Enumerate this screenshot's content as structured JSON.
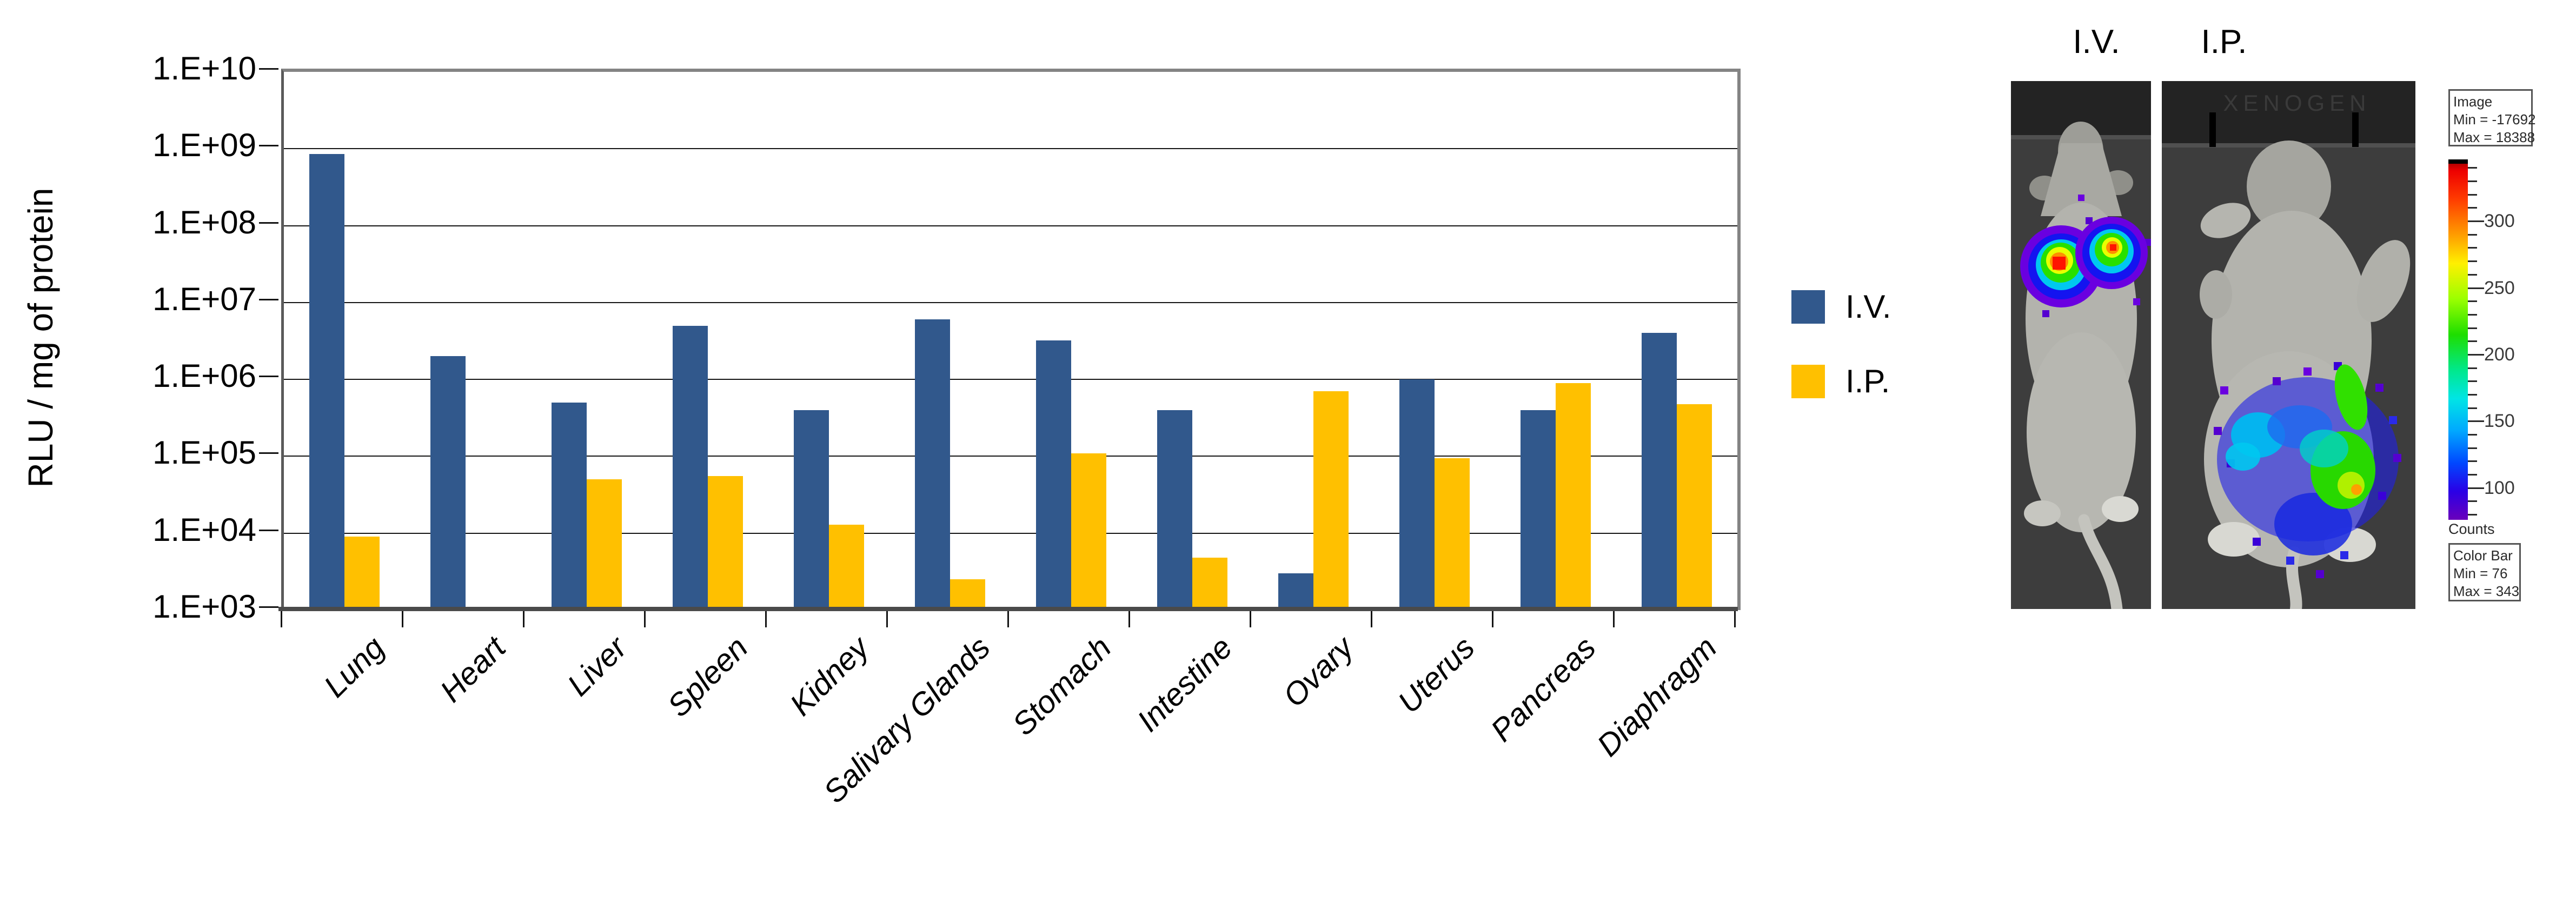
{
  "chart_data": {
    "type": "bar",
    "title": "",
    "xlabel": "",
    "ylabel": "RLU / mg of protein",
    "y_scale": "log",
    "ylim": [
      1000.0,
      10000000000.0
    ],
    "y_tick_labels": [
      "1.E+10",
      "1.E+09",
      "1.E+08",
      "1.E+07",
      "1.E+06",
      "1.E+05",
      "1.E+04",
      "1.E+03"
    ],
    "grid": "horizontal",
    "legend_position": "right",
    "categories": [
      "Lung",
      "Heart",
      "Liver",
      "Spleen",
      "Kidney",
      "Salivary Glands",
      "Stomach",
      "Intestine",
      "Ovary",
      "Uterus",
      "Pancreas",
      "Diaphragm"
    ],
    "series": [
      {
        "name": "I.V.",
        "color": "#31588C",
        "values": [
          850000000.0,
          2000000.0,
          500000.0,
          5000000.0,
          400000.0,
          6000000.0,
          3200000.0,
          400000.0,
          3000.0,
          1000000.0,
          400000.0,
          4000000.0
        ]
      },
      {
        "name": "I.P.",
        "color": "#FFC000",
        "values": [
          9000.0,
          null,
          50000.0,
          55000.0,
          13000.0,
          2500.0,
          110000.0,
          4800.0,
          700000.0,
          95000.0,
          900000.0,
          480000.0
        ]
      }
    ]
  },
  "imaging": {
    "iv_label": "I.V.",
    "ip_label": "I.P.",
    "faint_device_text": "XENOGEN",
    "image_box": {
      "line1": "Image",
      "line2": "Min = -17692",
      "line3": "Max = 18388"
    },
    "counts_label": "Counts",
    "colorbar_box": {
      "line1": "Color Bar",
      "line2": "Min = 76",
      "line3": "Max = 343"
    },
    "colorbar": {
      "min": 76,
      "max": 343,
      "major_ticks": [
        300,
        250,
        200,
        150,
        100
      ],
      "minor_tick_step": 10,
      "palette_top_to_bottom": [
        "#b40000",
        "#ff0000",
        "#ff9d00",
        "#fff000",
        "#1ede00",
        "#00e5e5",
        "#0048ff",
        "#6a00bb"
      ]
    }
  }
}
